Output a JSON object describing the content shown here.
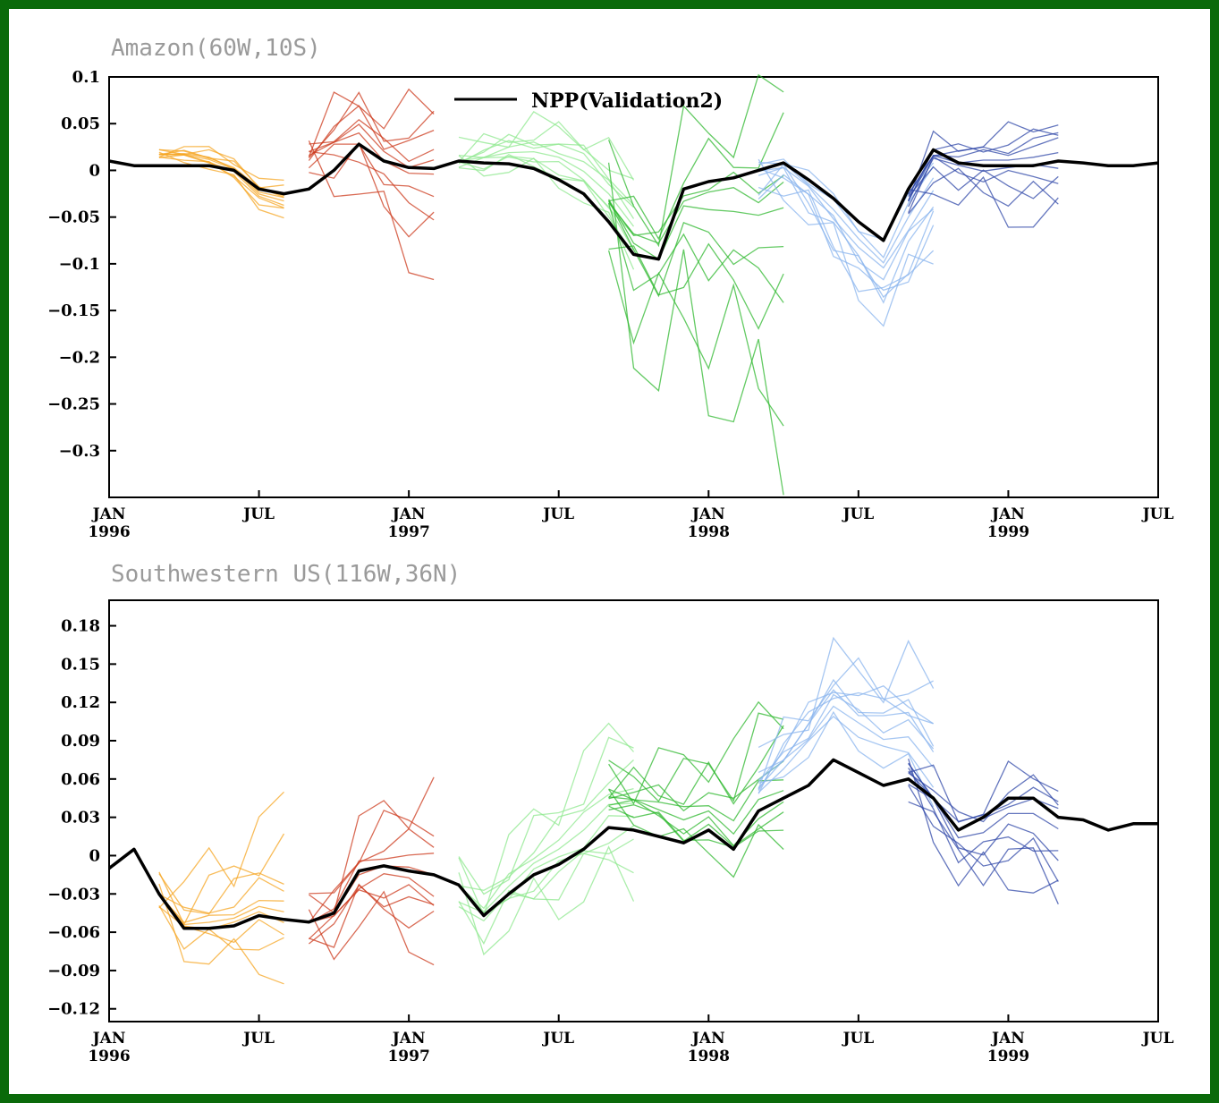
{
  "chart_data": [
    {
      "type": "line",
      "title": "Amazon(60W,10S)",
      "xlabel": "",
      "ylabel": "",
      "xlim": [
        0,
        42
      ],
      "ylim": [
        -0.35,
        0.1
      ],
      "yticks": [
        {
          "v": 0.1,
          "label": "0.1"
        },
        {
          "v": 0.05,
          "label": "0.05"
        },
        {
          "v": 0,
          "label": "0"
        },
        {
          "v": -0.05,
          "label": "-0.05"
        },
        {
          "v": -0.1,
          "label": "-0.1"
        },
        {
          "v": -0.15,
          "label": "-0.15"
        },
        {
          "v": -0.2,
          "label": "-0.2"
        },
        {
          "v": -0.25,
          "label": "-0.25"
        },
        {
          "v": -0.3,
          "label": "-0.3"
        }
      ],
      "xticks": [
        {
          "v": 0,
          "month": "JAN",
          "year": "1996"
        },
        {
          "v": 6,
          "month": "JUL",
          "year": ""
        },
        {
          "v": 12,
          "month": "JAN",
          "year": "1997"
        },
        {
          "v": 18,
          "month": "JUL",
          "year": ""
        },
        {
          "v": 24,
          "month": "JAN",
          "year": "1998"
        },
        {
          "v": 30,
          "month": "JUL",
          "year": ""
        },
        {
          "v": 36,
          "month": "JAN",
          "year": "1999"
        },
        {
          "v": 42,
          "month": "JUL",
          "year": ""
        }
      ],
      "legend": {
        "label": "NPP(Validation2)",
        "position": "top-center"
      },
      "series": [
        {
          "name": "NPP(Validation2)",
          "color": "#000000",
          "x": [
            0,
            1,
            2,
            3,
            4,
            5,
            6,
            7,
            8,
            9,
            10,
            11,
            12,
            13,
            14,
            15,
            16,
            17,
            18,
            19,
            20,
            21,
            22,
            23,
            24,
            25,
            26,
            27,
            28,
            29,
            30,
            31,
            32,
            33,
            34,
            35,
            36,
            37,
            38,
            39,
            40,
            41,
            42
          ],
          "y": [
            0.01,
            0.005,
            0.005,
            0.005,
            0.005,
            0.0,
            -0.02,
            -0.025,
            -0.02,
            0.0,
            0.028,
            0.01,
            0.003,
            0.002,
            0.01,
            0.008,
            0.007,
            0.002,
            -0.01,
            -0.025,
            -0.055,
            -0.09,
            -0.095,
            -0.02,
            -0.012,
            -0.008,
            0.0,
            0.008,
            -0.01,
            -0.03,
            -0.055,
            -0.075,
            -0.02,
            0.022,
            0.008,
            0.005,
            0.005,
            0.005,
            0.01,
            0.008,
            0.005,
            0.005,
            0.008
          ]
        }
      ],
      "ensembles": [
        {
          "color": "#f5a623",
          "start": 2,
          "len": 6,
          "offsets": [
            -0.012,
            -0.008,
            -0.005,
            -0.002,
            0.001,
            0.003,
            0.005,
            0.008,
            0.012,
            0.015
          ],
          "trend": [
            0.02,
            0.02,
            0.01,
            0.0,
            -0.01,
            -0.015
          ]
        },
        {
          "color": "#cc3a1c",
          "start": 8,
          "len": 6,
          "offsets": [
            -0.08,
            -0.05,
            -0.02,
            0.0,
            0.02,
            0.04,
            0.06,
            -0.03,
            0.01,
            0.03
          ],
          "trend": [
            0.06,
            0.05,
            0.02,
            0.0,
            -0.01,
            -0.01
          ]
        },
        {
          "color": "#8fe88f",
          "start": 14,
          "len": 8,
          "offsets": [
            -0.03,
            -0.02,
            -0.01,
            0.0,
            0.01,
            0.02,
            0.03,
            0.04,
            -0.015,
            0.015
          ],
          "trend": [
            0.0,
            0.01,
            0.02,
            0.03,
            0.04,
            0.04,
            0.05,
            0.05
          ]
        },
        {
          "color": "#2fb82f",
          "start": 20,
          "len": 8,
          "offsets": [
            -0.2,
            -0.15,
            -0.08,
            -0.04,
            0.0,
            0.03,
            0.06,
            0.1,
            -0.06,
            0.02
          ],
          "trend": [
            0.04,
            0.02,
            0.0,
            -0.03,
            -0.05,
            -0.06,
            -0.08,
            -0.08
          ]
        },
        {
          "color": "#8ab4ee",
          "start": 26,
          "len": 8,
          "offsets": [
            -0.06,
            -0.05,
            -0.04,
            -0.03,
            -0.02,
            -0.01,
            0.0,
            0.01,
            0.02,
            -0.045
          ],
          "trend": [
            0.0,
            0.0,
            -0.01,
            -0.02,
            -0.03,
            -0.04,
            -0.05,
            -0.05
          ]
        },
        {
          "color": "#3048a8",
          "start": 32,
          "len": 7,
          "offsets": [
            -0.06,
            -0.04,
            -0.02,
            0.0,
            0.01,
            0.02,
            0.03,
            -0.03,
            0.015,
            -0.01
          ],
          "trend": [
            -0.02,
            -0.01,
            0.0,
            0.01,
            0.01,
            0.015,
            0.015
          ]
        }
      ]
    },
    {
      "type": "line",
      "title": "Southwestern US(116W,36N)",
      "xlabel": "",
      "ylabel": "",
      "xlim": [
        0,
        42
      ],
      "ylim": [
        -0.13,
        0.2
      ],
      "yticks": [
        {
          "v": 0.18,
          "label": "0.18"
        },
        {
          "v": 0.15,
          "label": "0.15"
        },
        {
          "v": 0.12,
          "label": "0.12"
        },
        {
          "v": 0.09,
          "label": "0.09"
        },
        {
          "v": 0.06,
          "label": "0.06"
        },
        {
          "v": 0.03,
          "label": "0.03"
        },
        {
          "v": 0,
          "label": "0"
        },
        {
          "v": -0.03,
          "label": "-0.03"
        },
        {
          "v": -0.06,
          "label": "-0.06"
        },
        {
          "v": -0.09,
          "label": "-0.09"
        },
        {
          "v": -0.12,
          "label": "-0.12"
        }
      ],
      "xticks": [
        {
          "v": 0,
          "month": "JAN",
          "year": "1996"
        },
        {
          "v": 6,
          "month": "JUL",
          "year": ""
        },
        {
          "v": 12,
          "month": "JAN",
          "year": "1997"
        },
        {
          "v": 18,
          "month": "JUL",
          "year": ""
        },
        {
          "v": 24,
          "month": "JAN",
          "year": "1998"
        },
        {
          "v": 30,
          "month": "JUL",
          "year": ""
        },
        {
          "v": 36,
          "month": "JAN",
          "year": "1999"
        },
        {
          "v": 42,
          "month": "JUL",
          "year": ""
        }
      ],
      "series": [
        {
          "name": "NPP(Validation2)",
          "color": "#000000",
          "x": [
            0,
            1,
            2,
            3,
            4,
            5,
            6,
            7,
            8,
            9,
            10,
            11,
            12,
            13,
            14,
            15,
            16,
            17,
            18,
            19,
            20,
            21,
            22,
            23,
            24,
            25,
            26,
            27,
            28,
            29,
            30,
            31,
            32,
            33,
            34,
            35,
            36,
            37,
            38,
            39,
            40,
            41,
            42
          ],
          "y": [
            -0.01,
            0.005,
            -0.03,
            -0.057,
            -0.057,
            -0.055,
            -0.047,
            -0.05,
            -0.052,
            -0.045,
            -0.012,
            -0.008,
            -0.012,
            -0.015,
            -0.023,
            -0.047,
            -0.03,
            -0.015,
            -0.007,
            0.005,
            0.022,
            0.02,
            0.015,
            0.01,
            0.02,
            0.005,
            0.035,
            0.045,
            0.055,
            0.075,
            0.065,
            0.055,
            0.06,
            0.045,
            0.02,
            0.03,
            0.045,
            0.045,
            0.03,
            0.028,
            0.02,
            0.025,
            0.025
          ]
        }
      ],
      "ensembles": [
        {
          "color": "#f5a623",
          "start": 2,
          "len": 6,
          "offsets": [
            -0.04,
            -0.025,
            -0.015,
            -0.005,
            0.0,
            0.005,
            0.015,
            0.025,
            0.04,
            0.06
          ],
          "trend": [
            0.0,
            0.005,
            0.008,
            0.01,
            0.012,
            0.01
          ]
        },
        {
          "color": "#cc3a1c",
          "start": 8,
          "len": 6,
          "offsets": [
            -0.05,
            -0.035,
            -0.02,
            -0.01,
            0.0,
            0.01,
            0.02,
            0.035,
            0.05,
            -0.025
          ],
          "trend": [
            0.0,
            0.0,
            -0.005,
            0.0,
            0.005,
            0.0
          ]
        },
        {
          "color": "#8fe88f",
          "start": 14,
          "len": 8,
          "offsets": [
            -0.05,
            -0.035,
            -0.02,
            -0.01,
            0.0,
            0.01,
            0.02,
            0.035,
            0.05,
            -0.025
          ],
          "trend": [
            0.0,
            0.005,
            0.01,
            0.015,
            0.02,
            0.025,
            0.03,
            0.035
          ]
        },
        {
          "color": "#2fb82f",
          "start": 20,
          "len": 8,
          "offsets": [
            -0.03,
            -0.02,
            -0.01,
            0.0,
            0.01,
            0.02,
            0.03,
            0.045,
            0.06,
            -0.015
          ],
          "trend": [
            0.04,
            0.04,
            0.035,
            0.03,
            0.025,
            0.02,
            0.015,
            0.01
          ]
        },
        {
          "color": "#8ab4ee",
          "start": 26,
          "len": 8,
          "offsets": [
            -0.02,
            -0.01,
            0.0,
            0.01,
            0.02,
            0.03,
            0.04,
            0.05,
            0.015,
            0.025
          ],
          "trend": [
            0.03,
            0.05,
            0.06,
            0.07,
            0.065,
            0.06,
            0.055,
            0.04
          ]
        },
        {
          "color": "#3048a8",
          "start": 32,
          "len": 7,
          "offsets": [
            -0.05,
            -0.03,
            -0.015,
            0.0,
            0.01,
            0.02,
            0.03,
            -0.02,
            0.015,
            -0.035
          ],
          "trend": [
            0.01,
            0.0,
            -0.01,
            -0.02,
            -0.02,
            -0.02,
            -0.015
          ]
        }
      ]
    }
  ]
}
